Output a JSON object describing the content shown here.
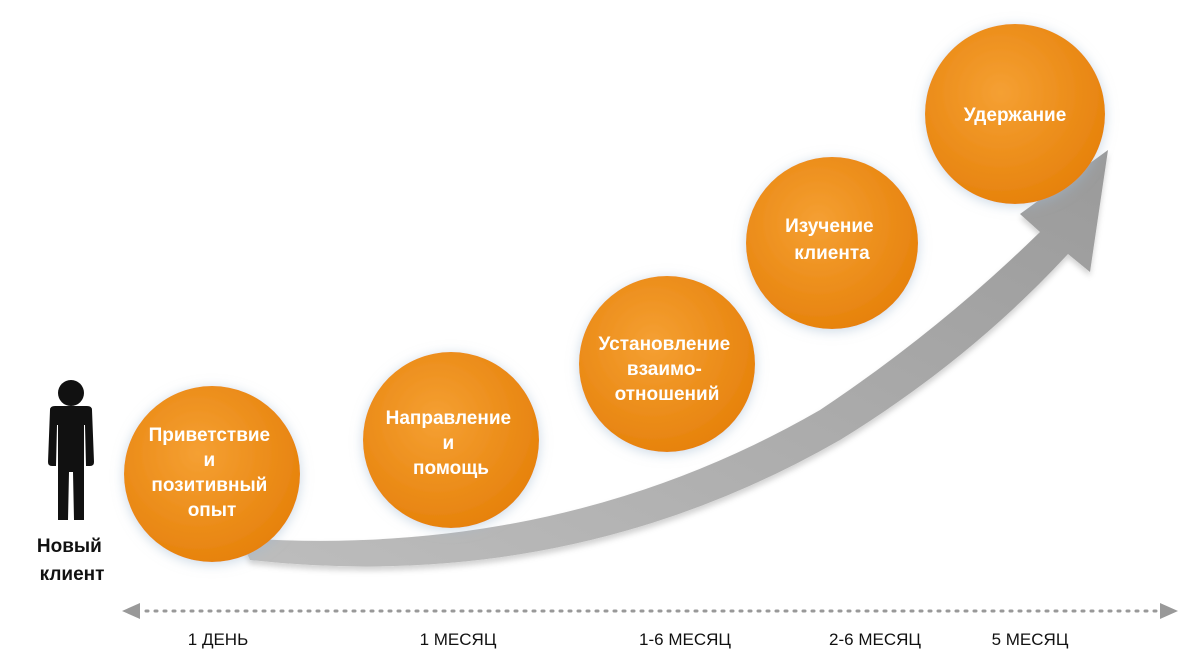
{
  "person": {
    "icon": "person-silhouette-icon",
    "label_lines": [
      "Новый",
      "клиент"
    ]
  },
  "stages": [
    {
      "lines": [
        "Приветствие",
        "и",
        "позитивный",
        "опыт"
      ]
    },
    {
      "lines": [
        "Направление",
        "и",
        "помощь"
      ]
    },
    {
      "lines": [
        "Установление",
        "взаимо-",
        "отношений"
      ]
    },
    {
      "lines": [
        "Изучение",
        "клиента"
      ]
    },
    {
      "lines": [
        "Удержание"
      ]
    }
  ],
  "timeline": {
    "labels": [
      "1 ДЕНЬ",
      "1 МЕСЯЦ",
      "1-6 МЕСЯЦ",
      "2-6 МЕСЯЦ",
      "5 МЕСЯЦ"
    ]
  },
  "colors": {
    "stage_fill": "#ee8a10",
    "stage_text": "#ffffff",
    "arrow": "#a9a9a9",
    "timeline": "#999999",
    "person": "#111111"
  }
}
